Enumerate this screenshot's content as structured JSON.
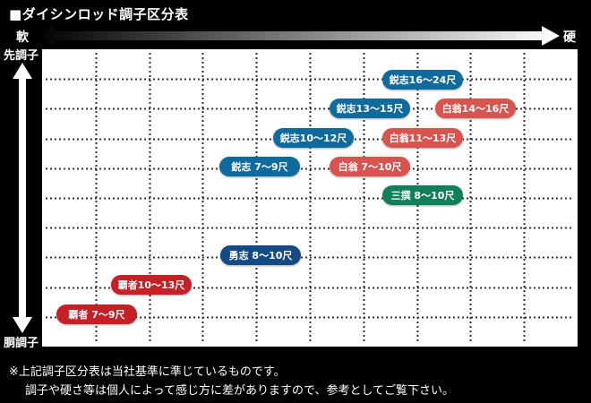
{
  "title": "■ダイシンロッド調子区分表",
  "axis": {
    "soft_label": "軟",
    "hard_label": "硬",
    "tip_label": "先調子",
    "body_label": "胴調子"
  },
  "colors": {
    "eishi": "#0f6a9e",
    "hakuou": "#d9534f",
    "sansen": "#10805a",
    "yuushi": "#144a86",
    "hasha": "#c42026"
  },
  "rods": [
    {
      "id": "eishi-16-24",
      "label": "鋭志16〜24尺",
      "series": "eishi"
    },
    {
      "id": "eishi-13-15",
      "label": "鋭志13〜15尺",
      "series": "eishi"
    },
    {
      "id": "hakuou-14-16",
      "label": "白翁14〜16尺",
      "series": "hakuou"
    },
    {
      "id": "eishi-10-12",
      "label": "鋭志10〜12尺",
      "series": "eishi"
    },
    {
      "id": "hakuou-11-13",
      "label": "白翁11〜13尺",
      "series": "hakuou"
    },
    {
      "id": "eishi-7-9",
      "label": "鋭志 7〜9尺",
      "series": "eishi"
    },
    {
      "id": "hakuou-7-10",
      "label": "白翁 7〜10尺",
      "series": "hakuou"
    },
    {
      "id": "sansen-8-10",
      "label": "三撰 8〜10尺",
      "series": "sansen"
    },
    {
      "id": "yuushi-8-10",
      "label": "勇志 8〜10尺",
      "series": "yuushi"
    },
    {
      "id": "hasha-10-13",
      "label": "覇者10〜13尺",
      "series": "hasha"
    },
    {
      "id": "hasha-7-9",
      "label": "覇者 7〜9尺",
      "series": "hasha"
    }
  ],
  "notes": {
    "line1": "※上記調子区分表は当社基準に準じているものです。",
    "line2": "調子や硬さ等は個人によって感じ方に差がありますので、参考としてご覧下さい。"
  }
}
